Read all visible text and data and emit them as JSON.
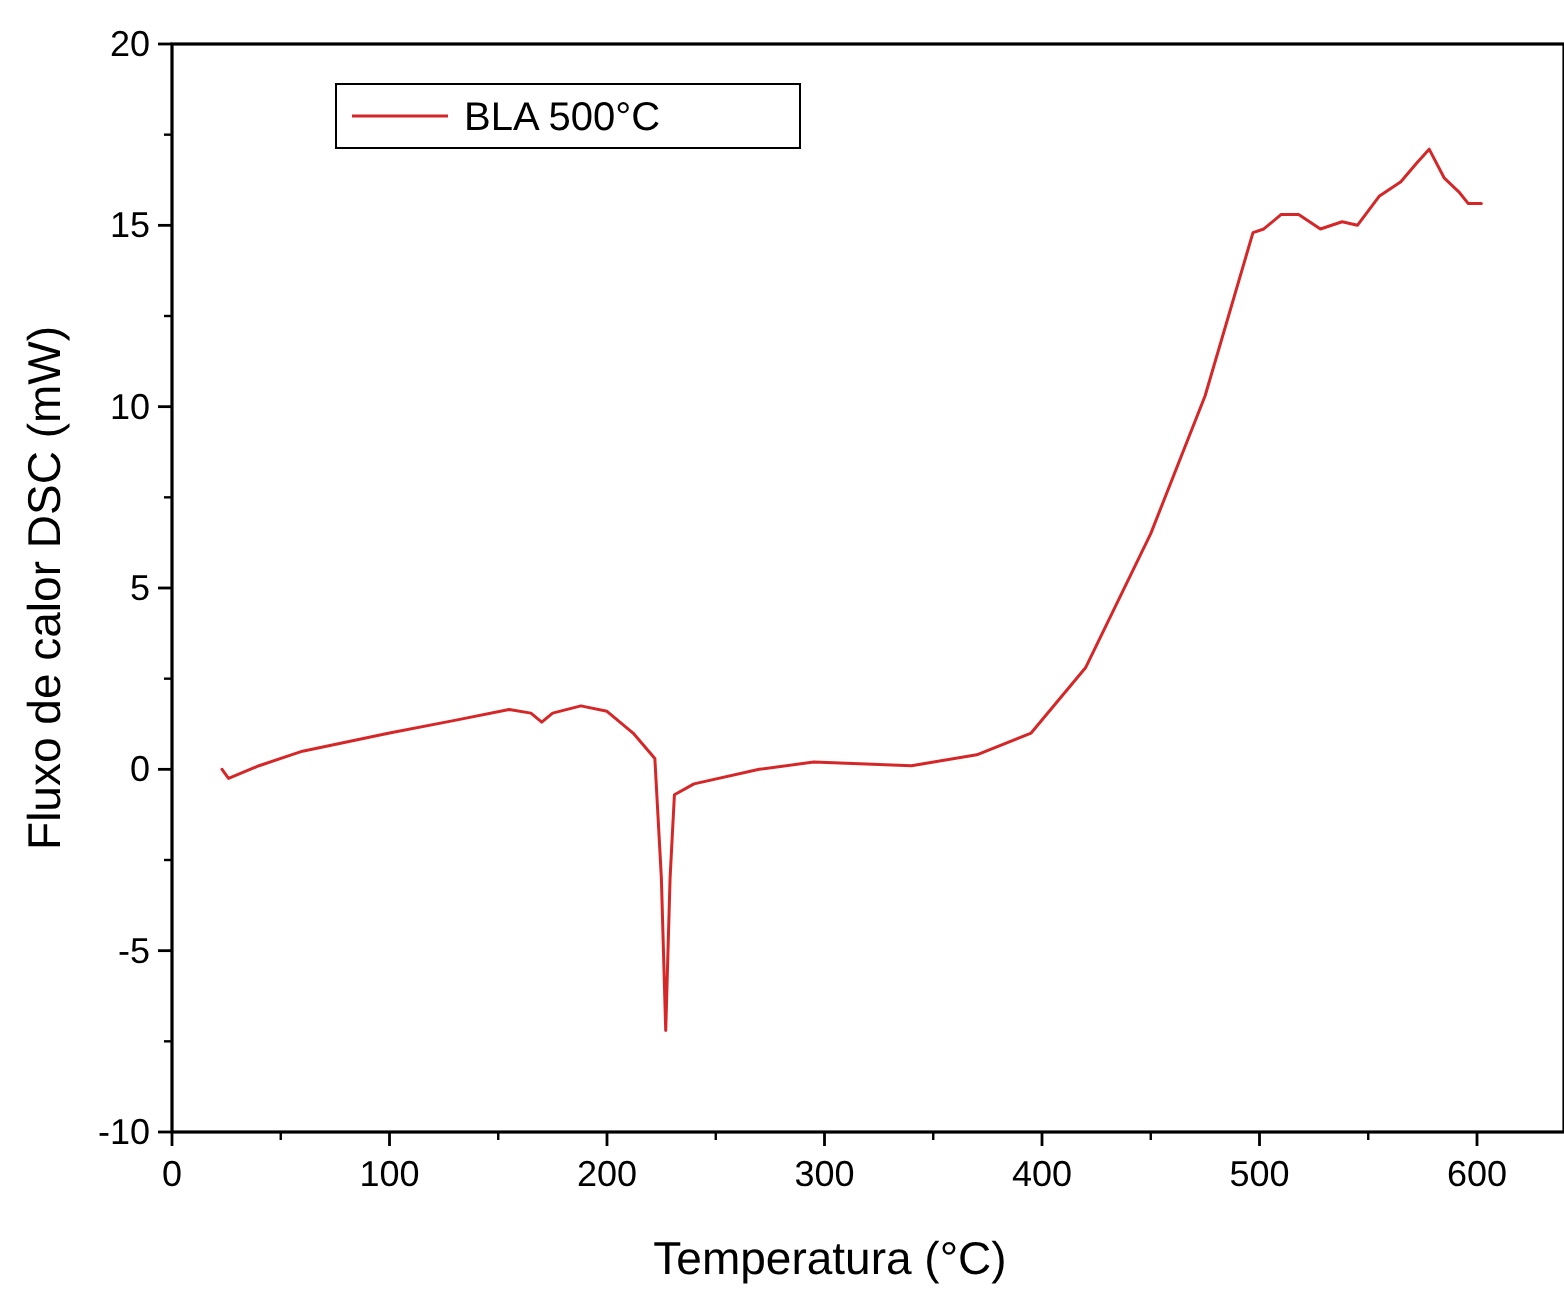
{
  "chart_data": {
    "type": "line",
    "xlabel": "Temperatura (°C)",
    "ylabel": "Fluxo de calor DSC (mW)",
    "xlim": [
      0,
      640
    ],
    "ylim": [
      -10,
      20
    ],
    "xticks": [
      0,
      100,
      200,
      300,
      400,
      500,
      600
    ],
    "yticks": [
      -10,
      -5,
      0,
      5,
      10,
      15,
      20
    ],
    "legend": "top left",
    "grid": false,
    "marker": "none",
    "line_style": "solid",
    "series": [
      {
        "name": "BLA 500°C",
        "color": "#d62728",
        "x": [
          23,
          26,
          40,
          60,
          100,
          130,
          155,
          165,
          170,
          175,
          188,
          200,
          212,
          222,
          225,
          227,
          229,
          231,
          240,
          270,
          295,
          340,
          370,
          395,
          420,
          450,
          475,
          497,
          502,
          510,
          518,
          528,
          538,
          545,
          555,
          565,
          572,
          578,
          585,
          592,
          596,
          602
        ],
        "values": [
          0.0,
          -0.25,
          0.1,
          0.5,
          1.0,
          1.35,
          1.65,
          1.55,
          1.3,
          1.55,
          1.75,
          1.6,
          1.0,
          0.3,
          -3,
          -7.2,
          -3,
          -0.7,
          -0.4,
          0.0,
          0.2,
          0.1,
          0.4,
          1.0,
          2.8,
          6.5,
          10.3,
          14.8,
          14.9,
          15.3,
          15.3,
          14.9,
          15.1,
          15.0,
          15.8,
          16.2,
          16.7,
          17.1,
          16.3,
          15.9,
          15.6,
          15.6
        ]
      }
    ]
  }
}
